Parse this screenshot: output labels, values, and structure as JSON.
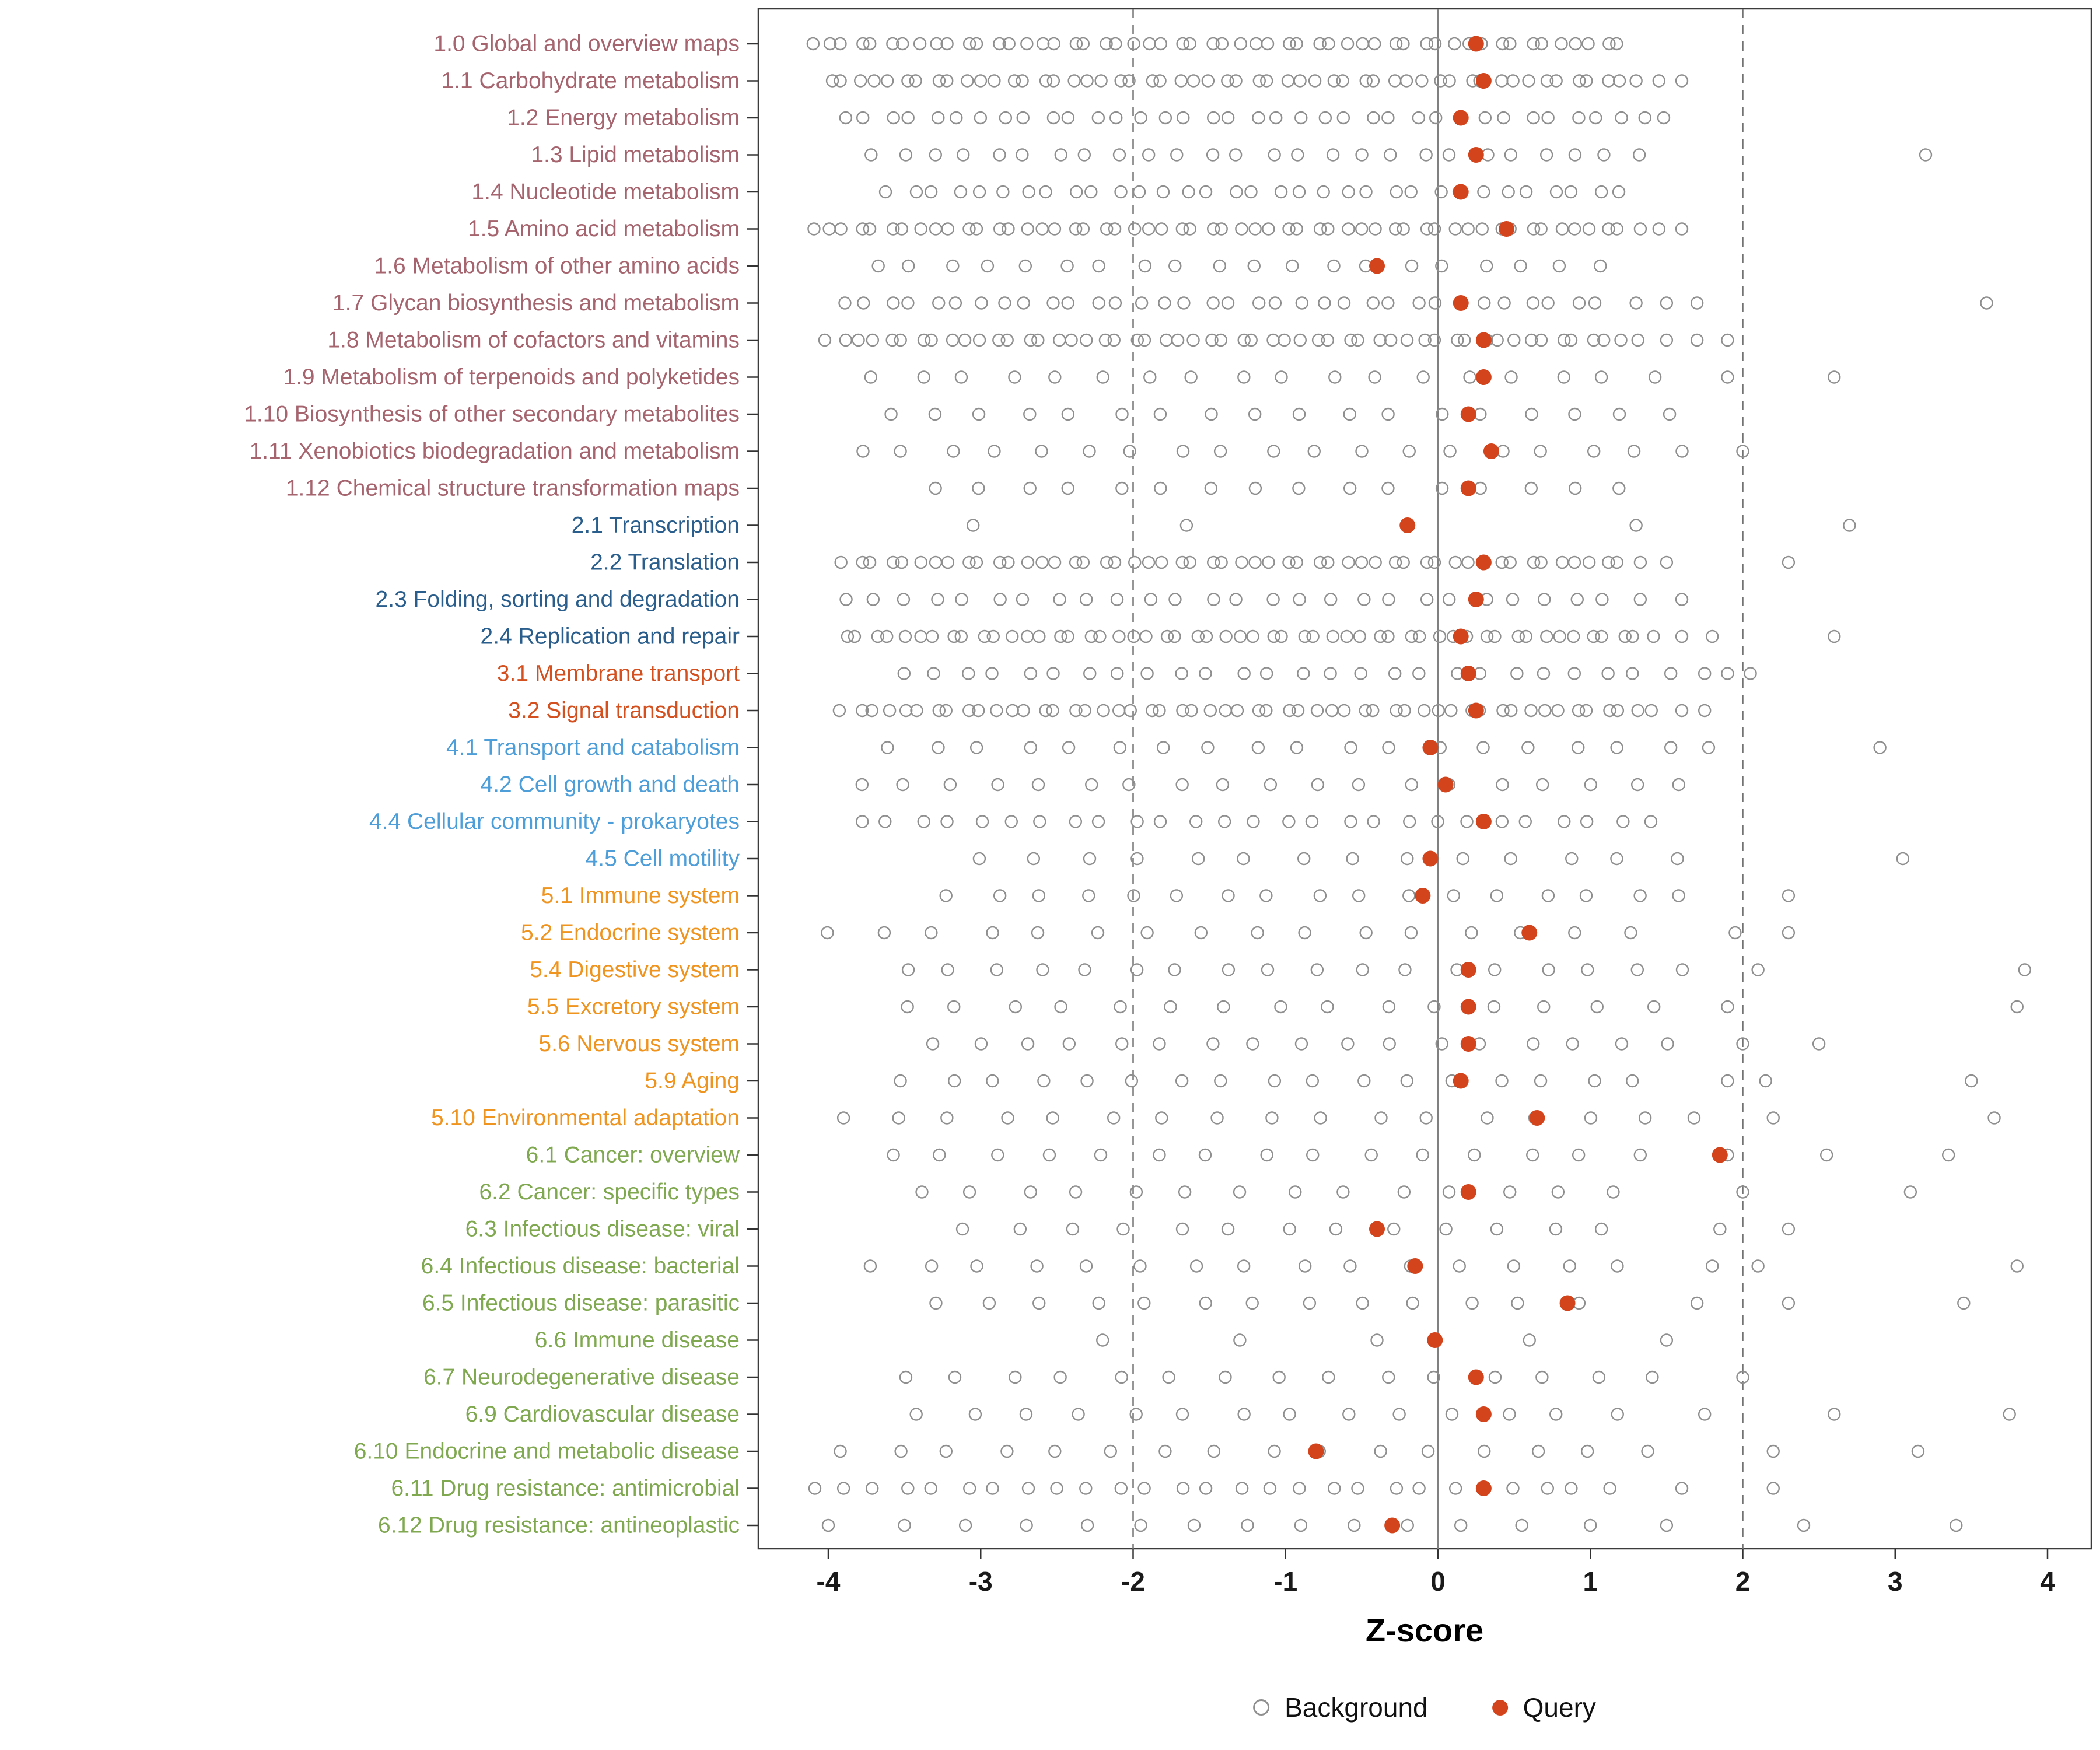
{
  "chart_data": {
    "type": "scatter",
    "title": "",
    "xlabel": "Z-score",
    "ylabel": "",
    "xlim": [
      -4.45,
      4.3
    ],
    "x_ticks": [
      -4,
      -3,
      -2,
      -1,
      0,
      1,
      2,
      3,
      4
    ],
    "grid": false,
    "reference_lines": {
      "solid": [
        0
      ],
      "dashed": [
        -2,
        2
      ]
    },
    "legend": {
      "position": "bottom",
      "background_label": "Background",
      "query_label": "Query"
    },
    "colors": {
      "query_fill": "#D4441C",
      "background_stroke": "#8F8F8F",
      "panel_border": "#3C3C3C",
      "axis_text": "#1A1A1A",
      "solid_line": "#808080",
      "dashed_line": "#737373"
    },
    "group_colors": {
      "metabolism": "#A5646E",
      "genetic_information_processing": "#2A5E8C",
      "environmental_information_processing": "#D4501E",
      "cellular_processes": "#4D9ED9",
      "organismal_systems": "#F09420",
      "human_diseases": "#7FA850"
    },
    "categories": [
      {
        "label": "1.0 Global and overview maps",
        "group": "metabolism",
        "query": 0.25,
        "background": {
          "from": -4.1,
          "to": 1.2,
          "step": 0.1
        }
      },
      {
        "label": "1.1 Carbohydrate metabolism",
        "group": "metabolism",
        "query": 0.3,
        "background": {
          "from": -4.0,
          "to": 1.2,
          "step": 0.1,
          "extra": [
            1.3,
            1.45,
            1.6
          ]
        }
      },
      {
        "label": "1.2 Energy metabolism",
        "group": "metabolism",
        "query": 0.15,
        "background": {
          "from": -3.9,
          "to": 1.55,
          "step": 0.15
        }
      },
      {
        "label": "1.3 Lipid metabolism",
        "group": "metabolism",
        "query": 0.25,
        "background": {
          "from": -3.7,
          "to": 1.4,
          "step": 0.2,
          "extra": [
            3.2
          ]
        }
      },
      {
        "label": "1.4 Nucleotide metabolism",
        "group": "metabolism",
        "query": 0.15,
        "background": {
          "from": -3.6,
          "to": 1.3,
          "step": 0.15
        }
      },
      {
        "label": "1.5 Amino acid metabolism",
        "group": "metabolism",
        "query": 0.45,
        "background": {
          "from": -4.1,
          "to": 1.3,
          "step": 0.1,
          "extra": [
            1.45,
            1.6
          ]
        }
      },
      {
        "label": "1.6 Metabolism of other amino acids",
        "group": "metabolism",
        "query": -0.4,
        "background": {
          "from": -3.7,
          "to": 1.1,
          "step": 0.25
        }
      },
      {
        "label": "1.7 Glycan biosynthesis and metabolism",
        "group": "metabolism",
        "query": 0.15,
        "background": {
          "from": -3.9,
          "to": 1.1,
          "step": 0.15,
          "extra": [
            1.3,
            1.5,
            1.7,
            3.6
          ]
        }
      },
      {
        "label": "1.8 Metabolism of cofactors and vitamins",
        "group": "metabolism",
        "query": 0.3,
        "background": {
          "from": -4.0,
          "to": 1.3,
          "step": 0.1,
          "extra": [
            1.5,
            1.7,
            1.9
          ]
        }
      },
      {
        "label": "1.9 Metabolism of terpenoids and polyketides",
        "group": "metabolism",
        "query": 0.3,
        "background": {
          "from": -3.7,
          "to": 1.5,
          "step": 0.3,
          "extra": [
            1.9,
            2.6
          ]
        }
      },
      {
        "label": "1.10 Biosynthesis of other secondary metabolites",
        "group": "metabolism",
        "query": 0.2,
        "background": {
          "from": -3.6,
          "to": 1.5,
          "step": 0.3
        }
      },
      {
        "label": "1.11 Xenobiotics biodegradation and metabolism",
        "group": "metabolism",
        "query": 0.35,
        "background": {
          "from": -3.8,
          "to": 1.6,
          "step": 0.3,
          "extra": [
            2.0
          ]
        }
      },
      {
        "label": "1.12 Chemical structure transformation maps",
        "group": "metabolism",
        "query": 0.2,
        "background": {
          "from": -3.3,
          "to": 1.3,
          "step": 0.3
        }
      },
      {
        "label": "2.1 Transcription",
        "group": "genetic_information_processing",
        "query": -0.2,
        "background": [
          -3.05,
          -1.65,
          1.3,
          2.7
        ]
      },
      {
        "label": "2.2 Translation",
        "group": "genetic_information_processing",
        "query": 0.3,
        "background": {
          "from": -3.9,
          "to": 1.3,
          "step": 0.1,
          "extra": [
            1.5,
            2.3
          ]
        }
      },
      {
        "label": "2.3 Folding, sorting and degradation",
        "group": "genetic_information_processing",
        "query": 0.25,
        "background": {
          "from": -3.9,
          "to": 1.3,
          "step": 0.2,
          "extra": [
            1.6
          ]
        }
      },
      {
        "label": "2.4 Replication and repair",
        "group": "genetic_information_processing",
        "query": 0.15,
        "background": {
          "from": -3.9,
          "to": 1.4,
          "step": 0.1,
          "extra": [
            1.6,
            1.8,
            2.6
          ]
        }
      },
      {
        "label": "3.1 Membrane transport",
        "group": "environmental_information_processing",
        "query": 0.2,
        "background": {
          "from": -3.5,
          "to": 1.5,
          "step": 0.2,
          "extra": [
            1.75,
            1.9,
            2.05
          ]
        }
      },
      {
        "label": "3.2 Signal transduction",
        "group": "environmental_information_processing",
        "query": 0.25,
        "background": {
          "from": -3.9,
          "to": 1.4,
          "step": 0.1,
          "extra": [
            1.6,
            1.75
          ]
        }
      },
      {
        "label": "4.1 Transport and catabolism",
        "group": "cellular_processes",
        "query": -0.05,
        "background": {
          "from": -3.6,
          "to": 1.9,
          "step": 0.3,
          "extra": [
            2.9
          ]
        }
      },
      {
        "label": "4.2 Cell growth and death",
        "group": "cellular_processes",
        "query": 0.05,
        "background": {
          "from": -3.8,
          "to": 1.6,
          "step": 0.3
        }
      },
      {
        "label": "4.4 Cellular community - prokaryotes",
        "group": "cellular_processes",
        "query": 0.3,
        "background": {
          "from": -3.8,
          "to": 1.4,
          "step": 0.2
        }
      },
      {
        "label": "4.5 Cell motility",
        "group": "cellular_processes",
        "query": -0.05,
        "background": {
          "from": -3.0,
          "to": 1.6,
          "step": 0.35,
          "extra": [
            3.05
          ]
        }
      },
      {
        "label": "5.1 Immune system",
        "group": "organismal_systems",
        "query": -0.1,
        "background": {
          "from": -3.2,
          "to": 1.7,
          "step": 0.3,
          "extra": [
            2.3
          ]
        }
      },
      {
        "label": "5.2 Endocrine system",
        "group": "organismal_systems",
        "query": 0.6,
        "background": {
          "from": -4.0,
          "to": 1.5,
          "step": 0.35,
          "extra": [
            1.95,
            2.3
          ]
        }
      },
      {
        "label": "5.4 Digestive system",
        "group": "organismal_systems",
        "query": 0.2,
        "background": {
          "from": -3.5,
          "to": 1.6,
          "step": 0.3,
          "extra": [
            2.1,
            3.85
          ]
        }
      },
      {
        "label": "5.5 Excretory system",
        "group": "organismal_systems",
        "query": 0.2,
        "background": {
          "from": -3.5,
          "to": 1.4,
          "step": 0.35,
          "extra": [
            1.9,
            3.8
          ]
        }
      },
      {
        "label": "5.6 Nervous system",
        "group": "organismal_systems",
        "query": 0.2,
        "background": {
          "from": -3.3,
          "to": 1.5,
          "step": 0.3,
          "extra": [
            2.0,
            2.5
          ]
        }
      },
      {
        "label": "5.9 Aging",
        "group": "organismal_systems",
        "query": 0.15,
        "background": {
          "from": -3.5,
          "to": 1.4,
          "step": 0.3,
          "extra": [
            1.9,
            2.15,
            3.5
          ]
        }
      },
      {
        "label": "5.10 Environmental adaptation",
        "group": "organismal_systems",
        "query": 0.65,
        "background": {
          "from": -3.9,
          "to": 1.7,
          "step": 0.35,
          "extra": [
            2.2,
            3.65
          ]
        }
      },
      {
        "label": "6.1 Cancer: overview",
        "group": "human_diseases",
        "query": 1.85,
        "background": {
          "from": -3.6,
          "to": 1.4,
          "step": 0.35,
          "extra": [
            1.9,
            2.55,
            3.35
          ]
        }
      },
      {
        "label": "6.2 Cancer: specific types",
        "group": "human_diseases",
        "query": 0.2,
        "background": {
          "from": -3.4,
          "to": 1.45,
          "step": 0.35,
          "extra": [
            2.0,
            3.1
          ]
        }
      },
      {
        "label": "6.3 Infectious disease: viral",
        "group": "human_diseases",
        "query": -0.4,
        "background": {
          "from": -3.1,
          "to": 1.35,
          "step": 0.35,
          "extra": [
            1.85,
            2.3
          ]
        }
      },
      {
        "label": "6.4 Infectious disease: bacterial",
        "group": "human_diseases",
        "query": -0.15,
        "background": {
          "from": -3.7,
          "to": 1.3,
          "step": 0.35,
          "extra": [
            1.8,
            2.1,
            3.8
          ]
        }
      },
      {
        "label": "6.5 Infectious disease: parasitic",
        "group": "human_diseases",
        "query": 0.85,
        "background": {
          "from": -3.3,
          "to": 1.2,
          "step": 0.35,
          "extra": [
            1.7,
            2.3,
            3.45
          ]
        }
      },
      {
        "label": "6.6 Immune disease",
        "group": "human_diseases",
        "query": -0.02,
        "background": [
          -2.2,
          -1.3,
          -0.4,
          0.6,
          1.5
        ]
      },
      {
        "label": "6.7 Neurodegenerative disease",
        "group": "human_diseases",
        "query": 0.25,
        "background": {
          "from": -3.5,
          "to": 1.45,
          "step": 0.35,
          "extra": [
            2.0
          ]
        }
      },
      {
        "label": "6.9 Cardiovascular disease",
        "group": "human_diseases",
        "query": 0.3,
        "background": {
          "from": -3.4,
          "to": 1.25,
          "step": 0.35,
          "extra": [
            1.75,
            2.6,
            3.75
          ]
        }
      },
      {
        "label": "6.10 Endocrine and metabolic disease",
        "group": "human_diseases",
        "query": -0.8,
        "background": {
          "from": -3.9,
          "to": 1.6,
          "step": 0.35,
          "extra": [
            2.2,
            3.15
          ]
        }
      },
      {
        "label": "6.11 Drug resistance: antimicrobial",
        "group": "human_diseases",
        "query": 0.3,
        "background": {
          "from": -4.1,
          "to": 1.2,
          "step": 0.2,
          "extra": [
            1.6,
            2.2
          ]
        }
      },
      {
        "label": "6.12 Drug resistance: antineoplastic",
        "group": "human_diseases",
        "query": -0.3,
        "background": [
          -4.0,
          -3.5,
          -3.1,
          -2.7,
          -2.3,
          -1.95,
          -1.6,
          -1.25,
          -0.9,
          -0.55,
          -0.2,
          0.15,
          0.55,
          1.0,
          1.5,
          2.4,
          3.4
        ]
      }
    ]
  }
}
